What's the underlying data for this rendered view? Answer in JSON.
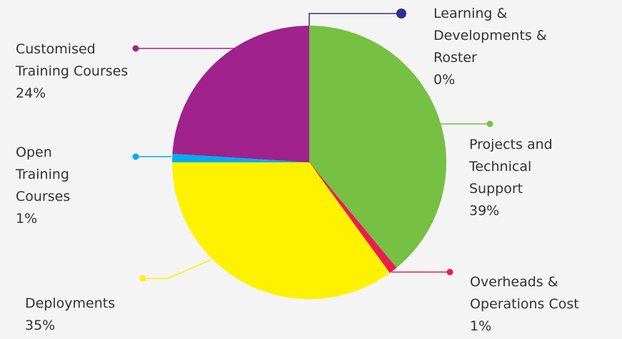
{
  "chart_data": {
    "type": "pie",
    "categories": [
      "Learning & Developments & Roster",
      "Projects and Technical Support",
      "Overheads & Operations Cost",
      "Deployments",
      "Open Training Courses",
      "Customised Training Courses"
    ],
    "values": [
      0,
      39,
      1,
      35,
      1,
      24
    ],
    "value_labels": [
      "0%",
      "39%",
      "1%",
      "35%",
      "1%",
      "24%"
    ],
    "colors": [
      "#2e3192",
      "#76c043",
      "#ed1c4f",
      "#fff200",
      "#00aeef",
      "#a0228c"
    ]
  }
}
